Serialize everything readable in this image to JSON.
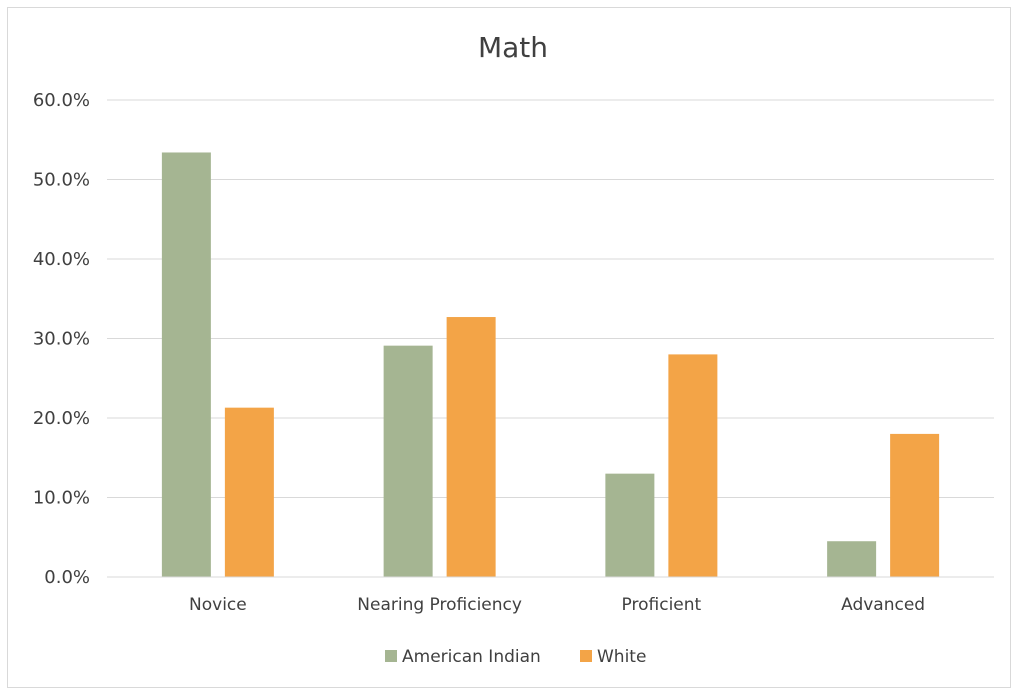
{
  "chart_data": {
    "type": "bar",
    "title": "Math",
    "xlabel": "",
    "ylabel": "",
    "categories": [
      "Novice",
      "Nearing Proficiency",
      "Proficient",
      "Advanced"
    ],
    "series": [
      {
        "name": "American Indian",
        "values": [
          53.4,
          29.1,
          13.0,
          4.5
        ]
      },
      {
        "name": "White",
        "values": [
          21.3,
          32.7,
          28.0,
          18.0
        ]
      }
    ],
    "ylim": [
      0,
      60
    ],
    "yticks": [
      "0.0%",
      "10.0%",
      "20.0%",
      "30.0%",
      "40.0%",
      "50.0%",
      "60.0%"
    ],
    "grid": true,
    "legend": "bottom",
    "colors": {
      "American Indian": "#a5b592",
      "White": "#f3a447",
      "grid": "#d9d9d9",
      "text": "#404040"
    }
  }
}
